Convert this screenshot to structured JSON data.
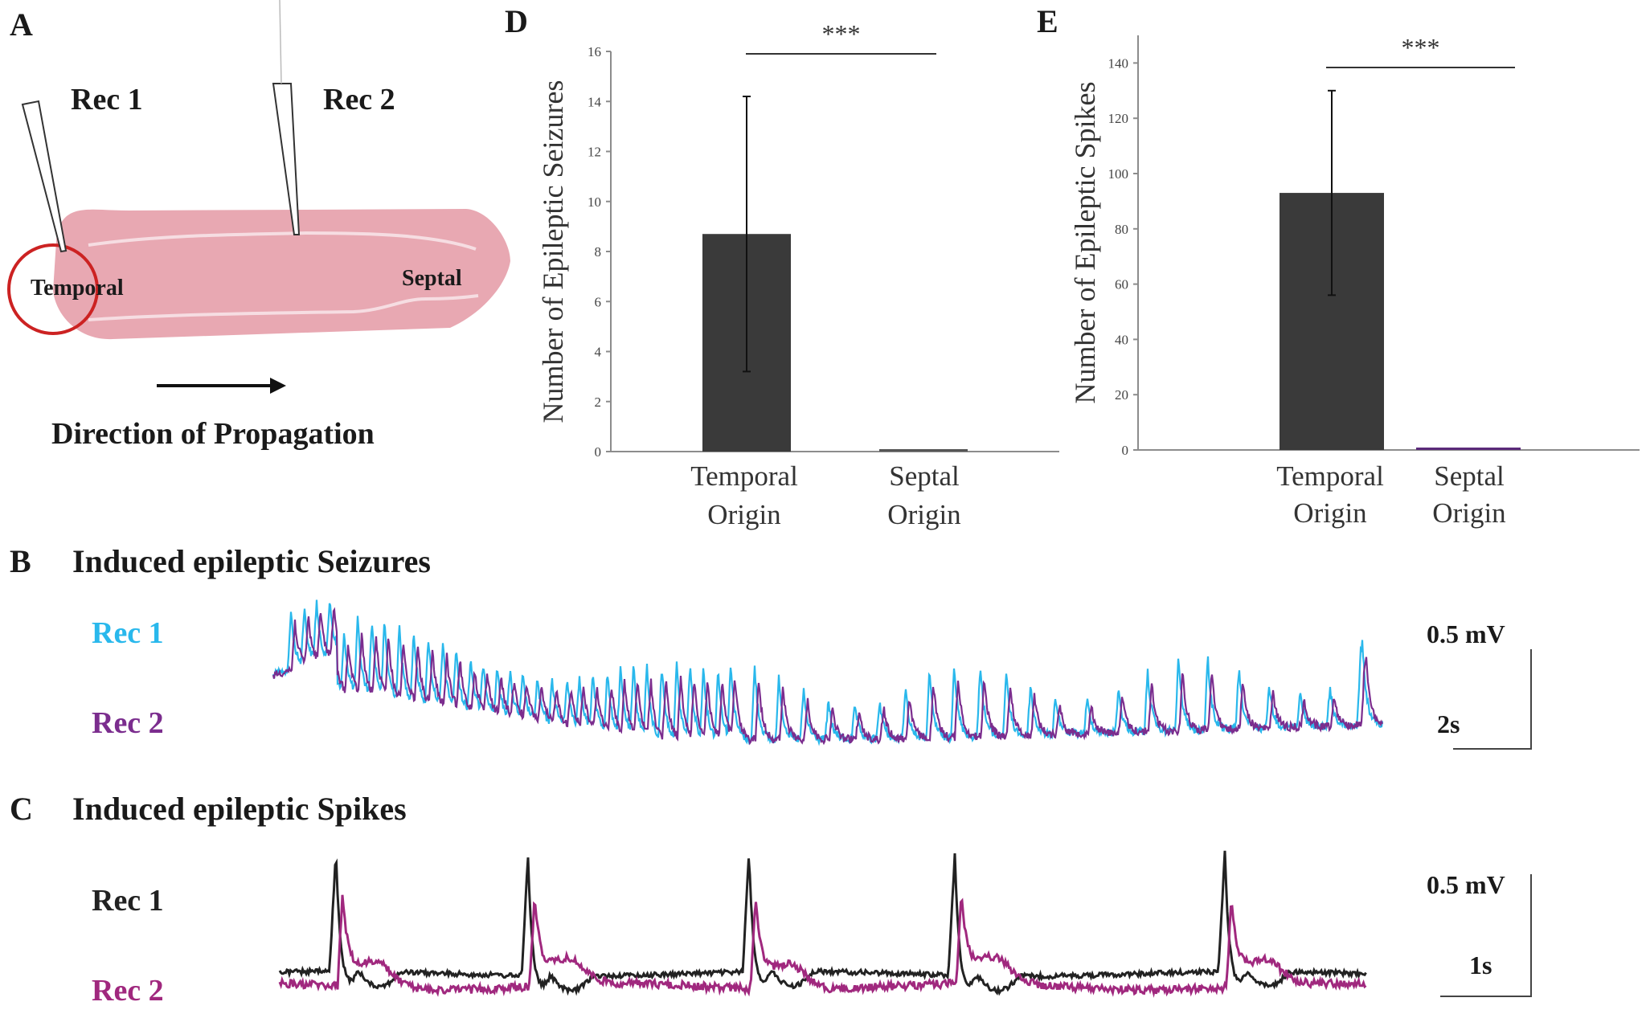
{
  "panels": {
    "A": {
      "letter": "A",
      "rec1": "Rec 1",
      "rec2": "Rec 2",
      "temporal": "Temporal",
      "septal": "Septal",
      "direction": "Direction of Propagation",
      "tissue_color": "#e8a8b2",
      "circle_color": "#cc2222"
    },
    "B": {
      "letter": "B",
      "title": "Induced epileptic Seizures",
      "rec1_label": "Rec 1",
      "rec2_label": "Rec 2",
      "rec1_color": "#29b8ec",
      "rec2_color": "#7b2d8e",
      "scale_amp": "0.5 mV",
      "scale_time": "2s"
    },
    "C": {
      "letter": "C",
      "title": "Induced epileptic Spikes",
      "rec1_label": "Rec 1",
      "rec2_label": "Rec 2",
      "rec1_color": "#222222",
      "rec2_color": "#a0287e",
      "scale_amp": "0.5 mV",
      "scale_time": "1s"
    }
  },
  "chart_data": [
    {
      "id": "D",
      "letter": "D",
      "type": "bar",
      "categories": [
        "Temporal Origin",
        "Septal Origin"
      ],
      "category_lines": [
        [
          "Temporal",
          "Origin"
        ],
        [
          "Septal",
          "Origin"
        ]
      ],
      "values": [
        8.7,
        0.05
      ],
      "errors": [
        5.5,
        0
      ],
      "bar_colors": [
        "#3a3a3a",
        "#555555"
      ],
      "ylabel": "Number of Epileptic Seizures",
      "ylim": [
        0,
        16
      ],
      "yticks": [
        0,
        2,
        4,
        6,
        8,
        10,
        12,
        14,
        16
      ],
      "significance": "***"
    },
    {
      "id": "E",
      "letter": "E",
      "type": "bar",
      "categories": [
        "Temporal Origin",
        "Septal Origin"
      ],
      "category_lines": [
        [
          "Temporal",
          "Origin"
        ],
        [
          "Septal",
          "Origin"
        ]
      ],
      "values": [
        93,
        0.8
      ],
      "errors": [
        37,
        0
      ],
      "bar_colors": [
        "#3a3a3a",
        "#5b2a7a"
      ],
      "ylabel": "Number of Epileptic Spikes",
      "ylim": [
        0,
        150
      ],
      "yticks": [
        0,
        20,
        40,
        60,
        80,
        100,
        120,
        140
      ],
      "significance": "***"
    }
  ]
}
